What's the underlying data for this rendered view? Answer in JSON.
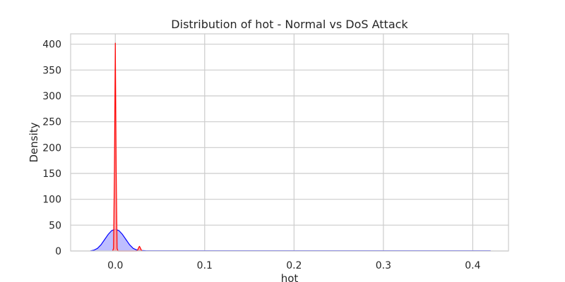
{
  "chart_data": {
    "type": "area",
    "title": "Distribution of hot - Normal vs DoS Attack",
    "xlabel": "hot",
    "ylabel": "Density",
    "xlim": [
      -0.05,
      0.44
    ],
    "ylim": [
      0,
      420
    ],
    "x_ticks": [
      "0.0",
      "0.1",
      "0.2",
      "0.3",
      "0.4"
    ],
    "x_tick_values": [
      0.0,
      0.1,
      0.2,
      0.3,
      0.4
    ],
    "y_ticks": [
      "0",
      "50",
      "100",
      "150",
      "200",
      "250",
      "300",
      "350",
      "400"
    ],
    "y_tick_values": [
      0,
      50,
      100,
      150,
      200,
      250,
      300,
      350,
      400
    ],
    "grid": true,
    "series": [
      {
        "color": "#0000ff",
        "fill": "#b3b3ff",
        "x": [
          -0.028,
          -0.024,
          -0.02,
          -0.016,
          -0.012,
          -0.008,
          -0.004,
          0.0,
          0.004,
          0.008,
          0.012,
          0.016,
          0.02,
          0.024,
          0.028,
          0.034,
          0.05,
          0.1,
          0.2,
          0.3,
          0.42
        ],
        "y": [
          0.3,
          1.5,
          5,
          12,
          22,
          32,
          39.5,
          42,
          39.5,
          32,
          22,
          12,
          5,
          2,
          1,
          0.5,
          0.4,
          0.3,
          0.3,
          0.3,
          0.3
        ]
      },
      {
        "color": "#ff0000",
        "fill": "#ff9999",
        "x": [
          -0.003,
          -0.002,
          -0.001,
          0.0,
          0.001,
          0.002,
          0.003,
          0.004,
          0.024,
          0.025,
          0.026,
          0.027,
          0.028,
          0.029,
          0.03
        ],
        "y": [
          0,
          5,
          150,
          402,
          150,
          5,
          0,
          0,
          0,
          2,
          6,
          9,
          6,
          2,
          0
        ]
      }
    ]
  }
}
